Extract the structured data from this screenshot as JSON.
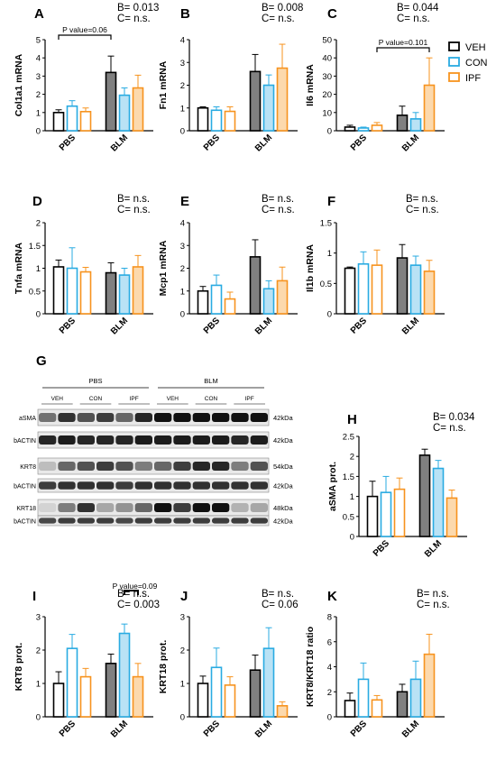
{
  "legend": [
    {
      "name": "VEH",
      "color": "#000000"
    },
    {
      "name": "CON",
      "color": "#29abe2"
    },
    {
      "name": "IPF",
      "color": "#f7931e"
    }
  ],
  "colors": {
    "veh_pbs_fill": "#ffffff",
    "veh_blm_fill": "#808080",
    "con_blm_fill": "#b9e2f5",
    "ipf_blm_fill": "#fcd9ad"
  },
  "chart_data": [
    {
      "id": "A",
      "type": "bar",
      "panel_label": "A",
      "ylabel": "Col1a1 mRNA",
      "ylim": [
        0,
        5
      ],
      "yticks": [
        0,
        1,
        2,
        3,
        4,
        5
      ],
      "categories": [
        "PBS",
        "BLM"
      ],
      "stats": [
        "B= 0.013",
        "C= n.s."
      ],
      "series": [
        {
          "name": "VEH",
          "values": [
            1.0,
            3.2
          ],
          "errors": [
            0.15,
            0.9
          ]
        },
        {
          "name": "CON",
          "values": [
            1.35,
            1.95
          ],
          "errors": [
            0.3,
            0.4
          ]
        },
        {
          "name": "IPF",
          "values": [
            1.05,
            2.35
          ],
          "errors": [
            0.2,
            0.7
          ]
        }
      ],
      "annotation": {
        "text": "P value=0.06"
      }
    },
    {
      "id": "B",
      "type": "bar",
      "panel_label": "B",
      "ylabel": "Fn1 mRNA",
      "ylim": [
        0,
        4
      ],
      "yticks": [
        0,
        1,
        2,
        3,
        4
      ],
      "categories": [
        "PBS",
        "BLM"
      ],
      "stats": [
        "B= 0.008",
        "C= n.s."
      ],
      "series": [
        {
          "name": "VEH",
          "values": [
            1.0,
            2.6
          ],
          "errors": [
            0.05,
            0.75
          ]
        },
        {
          "name": "CON",
          "values": [
            0.9,
            2.0
          ],
          "errors": [
            0.15,
            0.45
          ]
        },
        {
          "name": "IPF",
          "values": [
            0.85,
            2.75
          ],
          "errors": [
            0.2,
            1.05
          ]
        }
      ]
    },
    {
      "id": "C",
      "type": "bar",
      "panel_label": "C",
      "ylabel": "Il6 mRNA",
      "ylim": [
        0,
        50
      ],
      "yticks": [
        0,
        10,
        20,
        30,
        40,
        50
      ],
      "categories": [
        "PBS",
        "BLM"
      ],
      "stats": [
        "B= 0.044",
        "C= n.s."
      ],
      "series": [
        {
          "name": "VEH",
          "values": [
            2.0,
            8.5
          ],
          "errors": [
            1.0,
            5.0
          ]
        },
        {
          "name": "CON",
          "values": [
            1.5,
            6.5
          ],
          "errors": [
            0.5,
            3.5
          ]
        },
        {
          "name": "IPF",
          "values": [
            3.0,
            25.0
          ],
          "errors": [
            1.5,
            15.0
          ]
        }
      ],
      "annotation": {
        "text": "P value=0.101"
      }
    },
    {
      "id": "D",
      "type": "bar",
      "panel_label": "D",
      "ylabel": "Tnfa mRNA",
      "ylim": [
        0,
        2.0
      ],
      "yticks": [
        0,
        0.5,
        1.0,
        1.5,
        2.0
      ],
      "categories": [
        "PBS",
        "BLM"
      ],
      "stats": [
        "B= n.s.",
        "C= n.s."
      ],
      "series": [
        {
          "name": "VEH",
          "values": [
            1.03,
            0.9
          ],
          "errors": [
            0.15,
            0.22
          ]
        },
        {
          "name": "CON",
          "values": [
            1.0,
            0.85
          ],
          "errors": [
            0.45,
            0.15
          ]
        },
        {
          "name": "IPF",
          "values": [
            0.92,
            1.03
          ],
          "errors": [
            0.1,
            0.25
          ]
        }
      ]
    },
    {
      "id": "E",
      "type": "bar",
      "panel_label": "E",
      "ylabel": "Mcp1 mRNA",
      "ylim": [
        0,
        4
      ],
      "yticks": [
        0,
        1,
        2,
        3,
        4
      ],
      "categories": [
        "PBS",
        "BLM"
      ],
      "stats": [
        "B= n.s.",
        "C= n.s."
      ],
      "series": [
        {
          "name": "VEH",
          "values": [
            1.0,
            2.5
          ],
          "errors": [
            0.2,
            0.75
          ]
        },
        {
          "name": "CON",
          "values": [
            1.25,
            1.1
          ],
          "errors": [
            0.45,
            0.35
          ]
        },
        {
          "name": "IPF",
          "values": [
            0.65,
            1.45
          ],
          "errors": [
            0.3,
            0.6
          ]
        }
      ]
    },
    {
      "id": "F",
      "type": "bar",
      "panel_label": "F",
      "ylabel": "Il1b mRNA",
      "ylim": [
        0,
        1.5
      ],
      "yticks": [
        0,
        0.5,
        1.0,
        1.5
      ],
      "categories": [
        "PBS",
        "BLM"
      ],
      "stats": [
        "B= n.s.",
        "C= n.s."
      ],
      "series": [
        {
          "name": "VEH",
          "values": [
            0.75,
            0.92
          ],
          "errors": [
            0.02,
            0.22
          ]
        },
        {
          "name": "CON",
          "values": [
            0.82,
            0.8
          ],
          "errors": [
            0.2,
            0.15
          ]
        },
        {
          "name": "IPF",
          "values": [
            0.8,
            0.7
          ],
          "errors": [
            0.25,
            0.18
          ]
        }
      ]
    },
    {
      "id": "H",
      "type": "bar",
      "panel_label": "H",
      "ylabel": "aSMA prot.",
      "ylim": [
        0,
        2.5
      ],
      "yticks": [
        0,
        0.5,
        1.0,
        1.5,
        2.0,
        2.5
      ],
      "categories": [
        "PBS",
        "BLM"
      ],
      "stats": [
        "B= 0.034",
        "C= n.s."
      ],
      "series": [
        {
          "name": "VEH",
          "values": [
            1.0,
            2.03
          ],
          "errors": [
            0.38,
            0.15
          ]
        },
        {
          "name": "CON",
          "values": [
            1.1,
            1.7
          ],
          "errors": [
            0.4,
            0.2
          ]
        },
        {
          "name": "IPF",
          "values": [
            1.18,
            0.96
          ],
          "errors": [
            0.28,
            0.2
          ]
        }
      ]
    },
    {
      "id": "I",
      "type": "bar",
      "panel_label": "I",
      "ylabel": "KRT8 prot.",
      "ylim": [
        0,
        3
      ],
      "yticks": [
        0,
        1,
        2,
        3
      ],
      "categories": [
        "PBS",
        "BLM"
      ],
      "stats": [
        "B= n.s.",
        "C= 0.003"
      ],
      "series": [
        {
          "name": "VEH",
          "values": [
            1.0,
            1.6
          ],
          "errors": [
            0.35,
            0.28
          ]
        },
        {
          "name": "CON",
          "values": [
            2.05,
            2.5
          ],
          "errors": [
            0.42,
            0.28
          ]
        },
        {
          "name": "IPF",
          "values": [
            1.2,
            1.2
          ],
          "errors": [
            0.25,
            0.4
          ]
        }
      ],
      "annotation": {
        "text": "P value=0.09"
      }
    },
    {
      "id": "J",
      "type": "bar",
      "panel_label": "J",
      "ylabel": "KRT18 prot.",
      "ylim": [
        0,
        3
      ],
      "yticks": [
        0,
        1,
        2,
        3
      ],
      "categories": [
        "PBS",
        "BLM"
      ],
      "stats": [
        "B= n.s.",
        "C= 0.06"
      ],
      "series": [
        {
          "name": "VEH",
          "values": [
            1.0,
            1.4
          ],
          "errors": [
            0.22,
            0.45
          ]
        },
        {
          "name": "CON",
          "values": [
            1.48,
            2.05
          ],
          "errors": [
            0.58,
            0.62
          ]
        },
        {
          "name": "IPF",
          "values": [
            0.95,
            0.33
          ],
          "errors": [
            0.25,
            0.12
          ]
        }
      ]
    },
    {
      "id": "K",
      "type": "bar",
      "panel_label": "K",
      "ylabel": "KRT8/KRT18 ratio",
      "ylim": [
        0,
        8
      ],
      "yticks": [
        0,
        2,
        4,
        6,
        8
      ],
      "categories": [
        "PBS",
        "BLM"
      ],
      "stats": [
        "B= n.s.",
        "C= n.s."
      ],
      "series": [
        {
          "name": "VEH",
          "values": [
            1.3,
            2.0
          ],
          "errors": [
            0.6,
            0.6
          ]
        },
        {
          "name": "CON",
          "values": [
            3.0,
            3.0
          ],
          "errors": [
            1.3,
            1.45
          ]
        },
        {
          "name": "IPF",
          "values": [
            1.35,
            5.0
          ],
          "errors": [
            0.35,
            1.6
          ]
        }
      ]
    }
  ],
  "blot": {
    "panel_label": "G",
    "groups": [
      "PBS",
      "BLM"
    ],
    "lanes": [
      "VEH",
      "CON",
      "IPF",
      "VEH",
      "CON",
      "IPF"
    ],
    "rows": [
      {
        "label": "aSMA",
        "mw": "42kDa"
      },
      {
        "label": "bACTIN",
        "mw": "42kDa"
      },
      {
        "label": "KRT8",
        "mw": "54kDa"
      },
      {
        "label": "bACTIN",
        "mw": "42kDa"
      },
      {
        "label": "KRT18",
        "mw": "48kDa"
      },
      {
        "label": "bACTIN",
        "mw": "42kDa"
      }
    ]
  }
}
